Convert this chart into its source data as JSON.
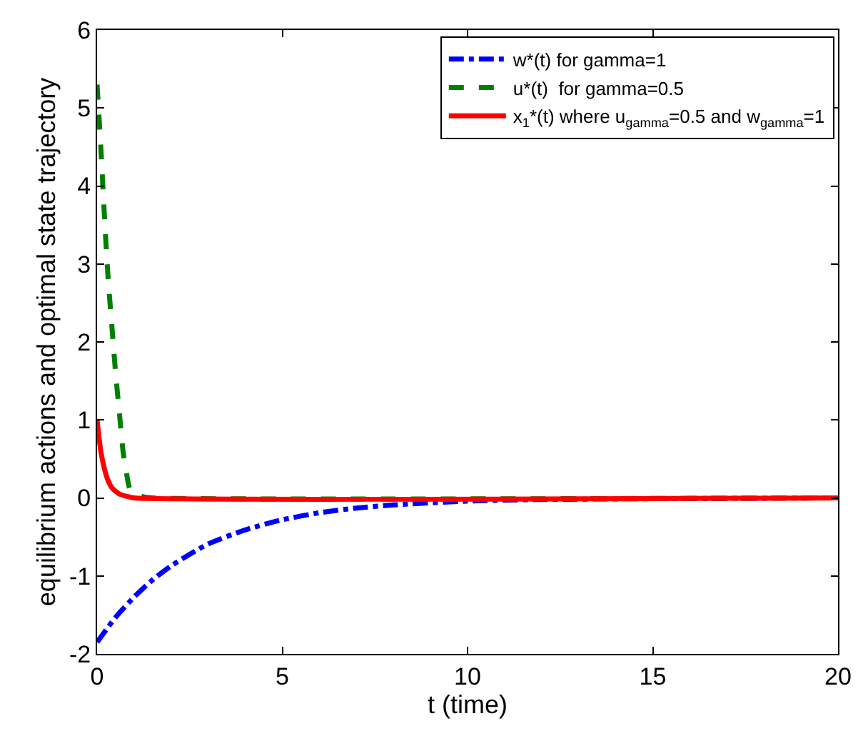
{
  "chart_data": {
    "type": "line",
    "xlabel": "t (time)",
    "ylabel": "equilibrium actions and optimal state trajectory",
    "xlim": [
      0,
      20
    ],
    "ylim": [
      -2,
      6
    ],
    "xticks": [
      0,
      5,
      10,
      15,
      20
    ],
    "yticks": [
      -2,
      -1,
      0,
      1,
      2,
      3,
      4,
      5,
      6
    ],
    "legend": "top right",
    "marker": "none",
    "series": [
      {
        "name": "w*(t) for gamma=1",
        "color": "#0000ff",
        "line_style": "dashdot",
        "x": [
          0,
          0.5,
          1,
          1.5,
          2,
          3,
          4,
          5,
          6,
          7,
          8,
          10,
          12,
          15,
          20
        ],
        "values": [
          -1.85,
          -1.53,
          -1.27,
          -1.05,
          -0.87,
          -0.59,
          -0.41,
          -0.28,
          -0.19,
          -0.13,
          -0.09,
          -0.04,
          -0.02,
          -0.01,
          0
        ]
      },
      {
        "name": "u*(t)  for gamma=0.5",
        "color": "#008000",
        "line_style": "dashed",
        "x": [
          0,
          0.1,
          0.2,
          0.3,
          0.4,
          0.5,
          0.6,
          0.7,
          0.8,
          0.9,
          1.2,
          1.5,
          20
        ],
        "values": [
          5.3,
          4.5,
          3.6,
          2.8,
          2.2,
          1.6,
          1.1,
          0.6,
          0.3,
          0.1,
          0.02,
          0,
          0
        ]
      },
      {
        "name": "x$_{1}$*(t) where u$_{gamma}$=0.5 and w$_{gamma}$=1",
        "color": "#ff0000",
        "line_style": "solid",
        "x": [
          0,
          0.1,
          0.2,
          0.3,
          0.4,
          0.6,
          0.8,
          1,
          20
        ],
        "values": [
          1,
          0.6,
          0.37,
          0.22,
          0.13,
          0.05,
          0.02,
          0,
          0
        ]
      }
    ]
  }
}
